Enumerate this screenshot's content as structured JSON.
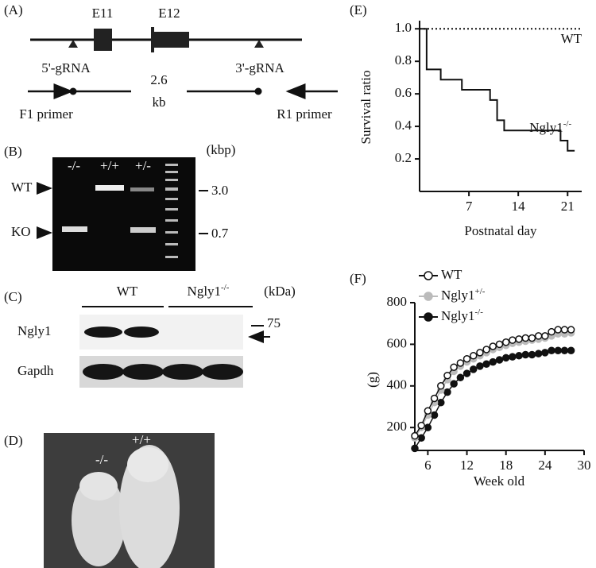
{
  "panel_a": {
    "label": "(A)",
    "exons": [
      "E11",
      "E12"
    ],
    "grna_5": "5'-gRNA",
    "grna_3": "3'-gRNA",
    "size": "2.6",
    "size_unit": "kb",
    "f1": "F1 primer",
    "r1": "R1 primer"
  },
  "panel_b": {
    "label": "(B)",
    "lanes": [
      "-/-",
      "+/+",
      "+/-"
    ],
    "unit": "(kbp)",
    "bands": [
      "WT",
      "KO"
    ],
    "markers": [
      "3.0",
      "0.7"
    ]
  },
  "panel_c": {
    "label": "(C)",
    "groups": [
      {
        "text": "WT"
      },
      {
        "text": "Ngly1",
        "sup": "-/-"
      }
    ],
    "unit": "(kDa)",
    "rows": [
      "Ngly1",
      "Gapdh"
    ],
    "marker": "75"
  },
  "panel_d": {
    "label": "(D)",
    "pups": [
      "-/-",
      "+/+"
    ]
  },
  "chart_data": [
    {
      "type": "step",
      "panel": "(E)",
      "y_label": "Survival ratio",
      "x_label": "Postnatal day",
      "xlim": [
        0,
        23
      ],
      "ylim": [
        0,
        1.05
      ],
      "xticks": [
        7,
        14,
        21
      ],
      "yticks": [
        0.2,
        0.4,
        0.6,
        0.8,
        {
          "value": 1,
          "label": "1.0"
        }
      ],
      "series": [
        {
          "name": "WT",
          "color": "#111",
          "dotted": true,
          "x": [
            0,
            23
          ],
          "values": [
            1,
            1
          ]
        },
        {
          "name": "Ngly1",
          "name_sup": "-/-",
          "color": "#111",
          "dotted": false,
          "x": [
            0,
            1,
            3,
            6,
            10,
            11,
            12,
            20,
            21,
            22
          ],
          "values": [
            1,
            0.75,
            0.6875,
            0.625,
            0.5625,
            0.4375,
            0.375,
            0.3125,
            0.25,
            0.25
          ]
        }
      ]
    },
    {
      "type": "line",
      "panel": "(F)",
      "y_label": "(g)",
      "x_label": "Week old",
      "xlim": [
        4,
        30
      ],
      "ylim": [
        90,
        800
      ],
      "xticks": [
        6,
        12,
        18,
        24,
        30
      ],
      "yticks": [
        200,
        400,
        600,
        800
      ],
      "x": [
        4,
        5,
        6,
        7,
        8,
        9,
        10,
        11,
        12,
        13,
        14,
        15,
        16,
        17,
        18,
        19,
        20,
        21,
        22,
        23,
        24,
        25,
        26,
        27,
        28
      ],
      "series": [
        {
          "name": "WT",
          "color": "#ffffff",
          "stroke": "#111",
          "values": [
            160,
            210,
            280,
            340,
            400,
            450,
            490,
            510,
            530,
            545,
            560,
            575,
            590,
            600,
            610,
            620,
            625,
            630,
            630,
            640,
            640,
            660,
            670,
            670,
            670
          ]
        },
        {
          "name": "Ngly1",
          "name_sup": "+/-",
          "color": "#bbbbbb",
          "stroke": "#bbbbbb",
          "values": [
            150,
            200,
            260,
            320,
            380,
            430,
            470,
            495,
            515,
            530,
            545,
            560,
            575,
            585,
            595,
            605,
            610,
            615,
            620,
            625,
            630,
            640,
            650,
            650,
            655
          ]
        },
        {
          "name": "Ngly1",
          "name_sup": "-/-",
          "color": "#111111",
          "stroke": "#111111",
          "values": [
            100,
            150,
            200,
            260,
            320,
            370,
            410,
            440,
            460,
            480,
            495,
            505,
            515,
            525,
            535,
            540,
            545,
            550,
            550,
            555,
            560,
            570,
            570,
            570,
            570
          ]
        }
      ]
    }
  ]
}
